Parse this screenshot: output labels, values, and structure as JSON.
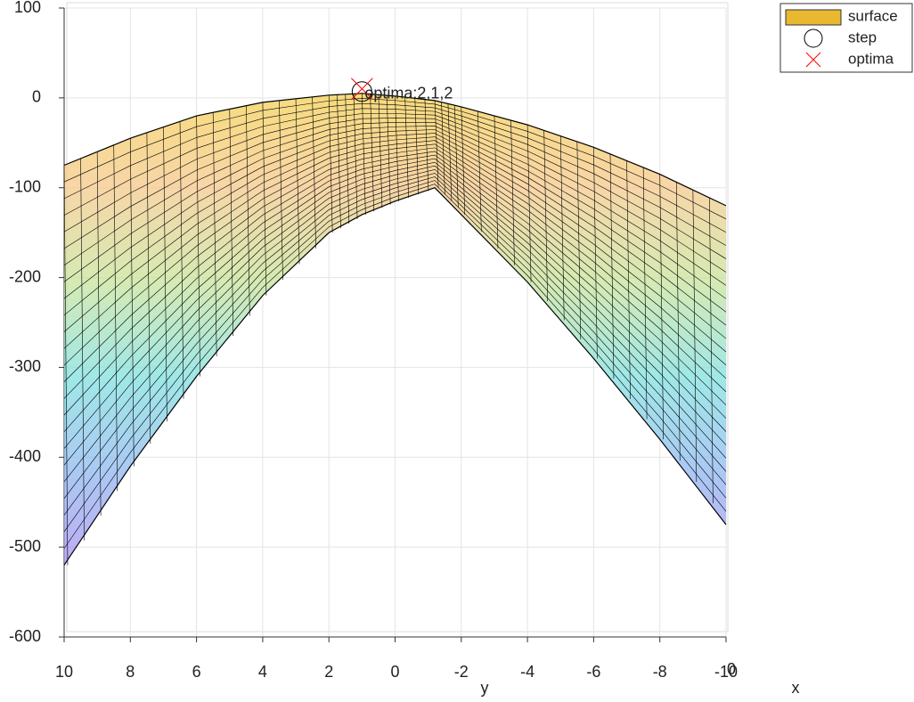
{
  "chart_data": {
    "type": "surface",
    "xlabel": "y",
    "x2label": "x",
    "xlim": [
      10,
      -10
    ],
    "xticks": [
      10,
      8,
      6,
      4,
      2,
      0,
      -2,
      -4,
      -6,
      -8,
      -10
    ],
    "x2ticks": [
      0
    ],
    "ylim": [
      -600,
      100
    ],
    "yticks": [
      -600,
      -500,
      -400,
      -300,
      -200,
      -100,
      0,
      100
    ],
    "grid": true,
    "legend": "outside-top-right",
    "annotation": "optima:2,1,2",
    "series": [
      {
        "name": "surface",
        "color": "#e8b830",
        "x": [
          10,
          8,
          6,
          4,
          2,
          1,
          0,
          -1.2,
          -2,
          -4,
          -6,
          -8,
          -10
        ],
        "values": [
          -75,
          -45,
          -20,
          -5,
          3,
          5,
          2,
          -3,
          -10,
          -30,
          -55,
          -85,
          -120
        ],
        "lower_values": [
          -520,
          -410,
          -310,
          -220,
          -150,
          -130,
          -115,
          -100,
          -130,
          -205,
          -290,
          -380,
          -475
        ]
      },
      {
        "name": "step",
        "color": "#000000",
        "x": [
          1
        ],
        "values": [
          7
        ]
      },
      {
        "name": "optima",
        "color": "#ff0000",
        "x": [
          1
        ],
        "values": [
          10
        ]
      }
    ]
  }
}
